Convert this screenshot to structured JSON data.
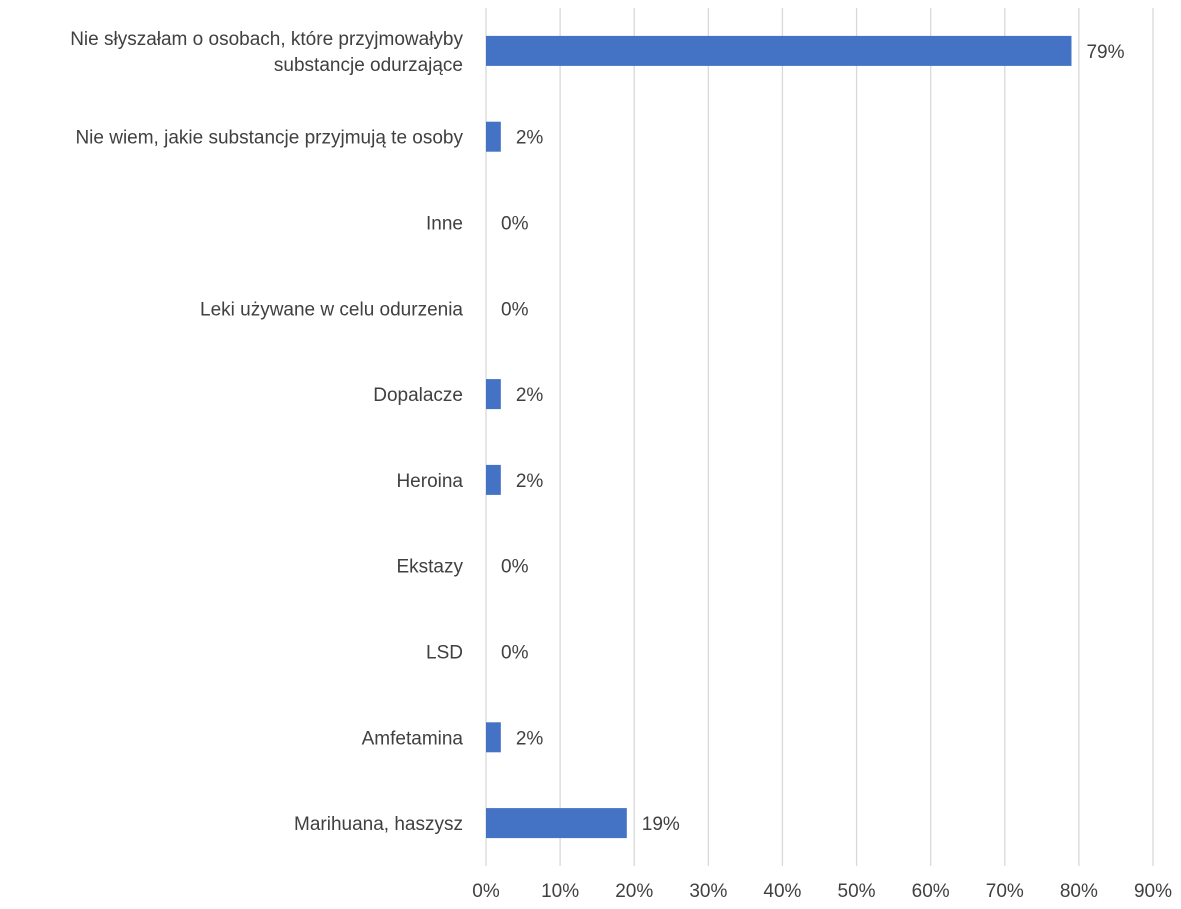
{
  "chart_data": {
    "type": "bar",
    "orientation": "horizontal",
    "title": "",
    "xlabel": "",
    "ylabel": "",
    "xlim": [
      0,
      90
    ],
    "x_ticks": [
      "0%",
      "10%",
      "20%",
      "30%",
      "40%",
      "50%",
      "60%",
      "70%",
      "80%",
      "90%"
    ],
    "grid": "vertical",
    "bar_color": "#4472c4",
    "categories": [
      "Nie słyszałam o osobach, które przyjmowałyby substancje odurzające",
      "Nie wiem, jakie substancje przyjmują te osoby",
      "Inne",
      "Leki używane w celu odurzenia",
      "Dopalacze",
      "Heroina",
      "Ekstazy",
      "LSD",
      "Amfetamina",
      "Marihuana, haszysz"
    ],
    "category_lines": [
      [
        "Nie słyszałam o osobach, które przyjmowałyby",
        "substancje odurzające"
      ],
      [
        "Nie wiem, jakie substancje przyjmują te osoby"
      ],
      [
        "Inne"
      ],
      [
        "Leki używane w celu odurzenia"
      ],
      [
        "Dopalacze"
      ],
      [
        "Heroina"
      ],
      [
        "Ekstazy"
      ],
      [
        "LSD"
      ],
      [
        "Amfetamina"
      ],
      [
        "Marihuana, haszysz"
      ]
    ],
    "values": [
      79,
      2,
      0,
      0,
      2,
      2,
      0,
      0,
      2,
      19
    ],
    "value_labels": [
      "79%",
      "2%",
      "0%",
      "0%",
      "2%",
      "2%",
      "0%",
      "0%",
      "2%",
      "19%"
    ]
  }
}
